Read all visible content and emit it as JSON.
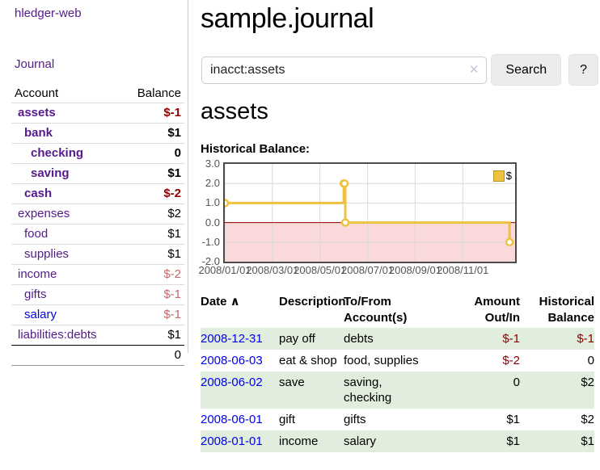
{
  "app": {
    "title": "hledger-web"
  },
  "colors": {
    "visited_link_purple": "#551a8b",
    "link_blue": "#0000ee",
    "negative_strong": "#8b0000",
    "negative_faint": "#c56a6a",
    "row_shade_green": "#e2eedd",
    "chart_line_gold": "#edc240",
    "negative_region_pink": "#f9d9d9",
    "zero_line_red": "#a00000"
  },
  "sidebar": {
    "journal_link": "Journal",
    "accounts_table": {
      "headers": {
        "account": "Account",
        "balance": "Balance"
      },
      "rows": [
        {
          "name": "assets",
          "depth": 1,
          "bold": true,
          "link_color": "purple",
          "balance": "$-1",
          "balance_style": "neg-strong"
        },
        {
          "name": "bank",
          "depth": 2,
          "bold": true,
          "link_color": "purple",
          "balance": "$1",
          "balance_style": "pos"
        },
        {
          "name": "checking",
          "depth": 3,
          "bold": true,
          "link_color": "purple",
          "balance": "0",
          "balance_style": "pos"
        },
        {
          "name": "saving",
          "depth": 3,
          "bold": true,
          "link_color": "purple",
          "balance": "$1",
          "balance_style": "pos"
        },
        {
          "name": "cash",
          "depth": 2,
          "bold": true,
          "link_color": "purple",
          "balance": "$-2",
          "balance_style": "neg-strong"
        },
        {
          "name": "expenses",
          "depth": 1,
          "bold": false,
          "link_color": "purple",
          "balance": "$2",
          "balance_style": "pos"
        },
        {
          "name": "food",
          "depth": 2,
          "bold": false,
          "link_color": "purple",
          "balance": "$1",
          "balance_style": "pos"
        },
        {
          "name": "supplies",
          "depth": 2,
          "bold": false,
          "link_color": "purple",
          "balance": "$1",
          "balance_style": "pos"
        },
        {
          "name": "income",
          "depth": 1,
          "bold": false,
          "link_color": "purple",
          "balance": "$-2",
          "balance_style": "neg-faint"
        },
        {
          "name": "gifts",
          "depth": 2,
          "bold": false,
          "link_color": "purple",
          "balance": "$-1",
          "balance_style": "neg-faint"
        },
        {
          "name": "salary",
          "depth": 2,
          "bold": false,
          "link_color": "blue",
          "balance": "$-1",
          "balance_style": "neg-faint"
        },
        {
          "name": "liabilities:debts",
          "depth": 1,
          "bold": false,
          "link_color": "purple",
          "balance": "$1",
          "balance_style": "pos"
        }
      ],
      "total": "0"
    }
  },
  "main": {
    "title": "sample.journal",
    "search": {
      "value": "inacct:assets",
      "clear_icon": "✕",
      "search_button": "Search",
      "help_button": "?"
    },
    "account_heading": "assets"
  },
  "chart_data": {
    "type": "line",
    "step": true,
    "title": "Historical Balance:",
    "x": [
      "2008-01-01",
      "2008-06-01",
      "2008-06-02",
      "2008-06-03",
      "2008-12-31"
    ],
    "series": [
      {
        "name": "$",
        "color": "#edc240",
        "values": [
          1,
          2,
          2,
          0,
          -1
        ]
      }
    ],
    "x_tick_labels": [
      "2008/01/01",
      "2008/03/01",
      "2008/05/01",
      "2008/07/01",
      "2008/09/01",
      "2008/11/01"
    ],
    "y_ticks": [
      "3.0",
      "2.0",
      "1.0",
      "0.0",
      "-1.0",
      "-2.0"
    ],
    "ylim": [
      -2,
      3
    ],
    "grid": true,
    "legend": {
      "label": "$",
      "position": "top-right"
    },
    "negative_region": {
      "below": 0,
      "color": "#f9d9d9",
      "zero_line_color": "#a00000"
    }
  },
  "register": {
    "columns": [
      {
        "label": "Date",
        "align": "left",
        "sort_icon": "∧"
      },
      {
        "label": "Description",
        "align": "left"
      },
      {
        "label": "To/From\nAccount(s)",
        "align": "left"
      },
      {
        "label": "Amount\nOut/In",
        "align": "right"
      },
      {
        "label": "Historical\nBalance",
        "align": "right"
      }
    ],
    "rows": [
      {
        "date": "2008-12-31",
        "description": "pay off",
        "accounts": "debts",
        "amount": "$-1",
        "amount_negative": true,
        "balance": "$-1",
        "balance_negative": true,
        "shaded": true
      },
      {
        "date": "2008-06-03",
        "description": "eat & shop",
        "accounts": "food, supplies",
        "amount": "$-2",
        "amount_negative": true,
        "balance": "0",
        "balance_negative": false,
        "shaded": false
      },
      {
        "date": "2008-06-02",
        "description": "save",
        "accounts": "saving, checking",
        "amount": "0",
        "amount_negative": false,
        "balance": "$2",
        "balance_negative": false,
        "shaded": true
      },
      {
        "date": "2008-06-01",
        "description": "gift",
        "accounts": "gifts",
        "amount": "$1",
        "amount_negative": false,
        "balance": "$2",
        "balance_negative": false,
        "shaded": false
      },
      {
        "date": "2008-01-01",
        "description": "income",
        "accounts": "salary",
        "amount": "$1",
        "amount_negative": false,
        "balance": "$1",
        "balance_negative": false,
        "shaded": true
      }
    ]
  }
}
